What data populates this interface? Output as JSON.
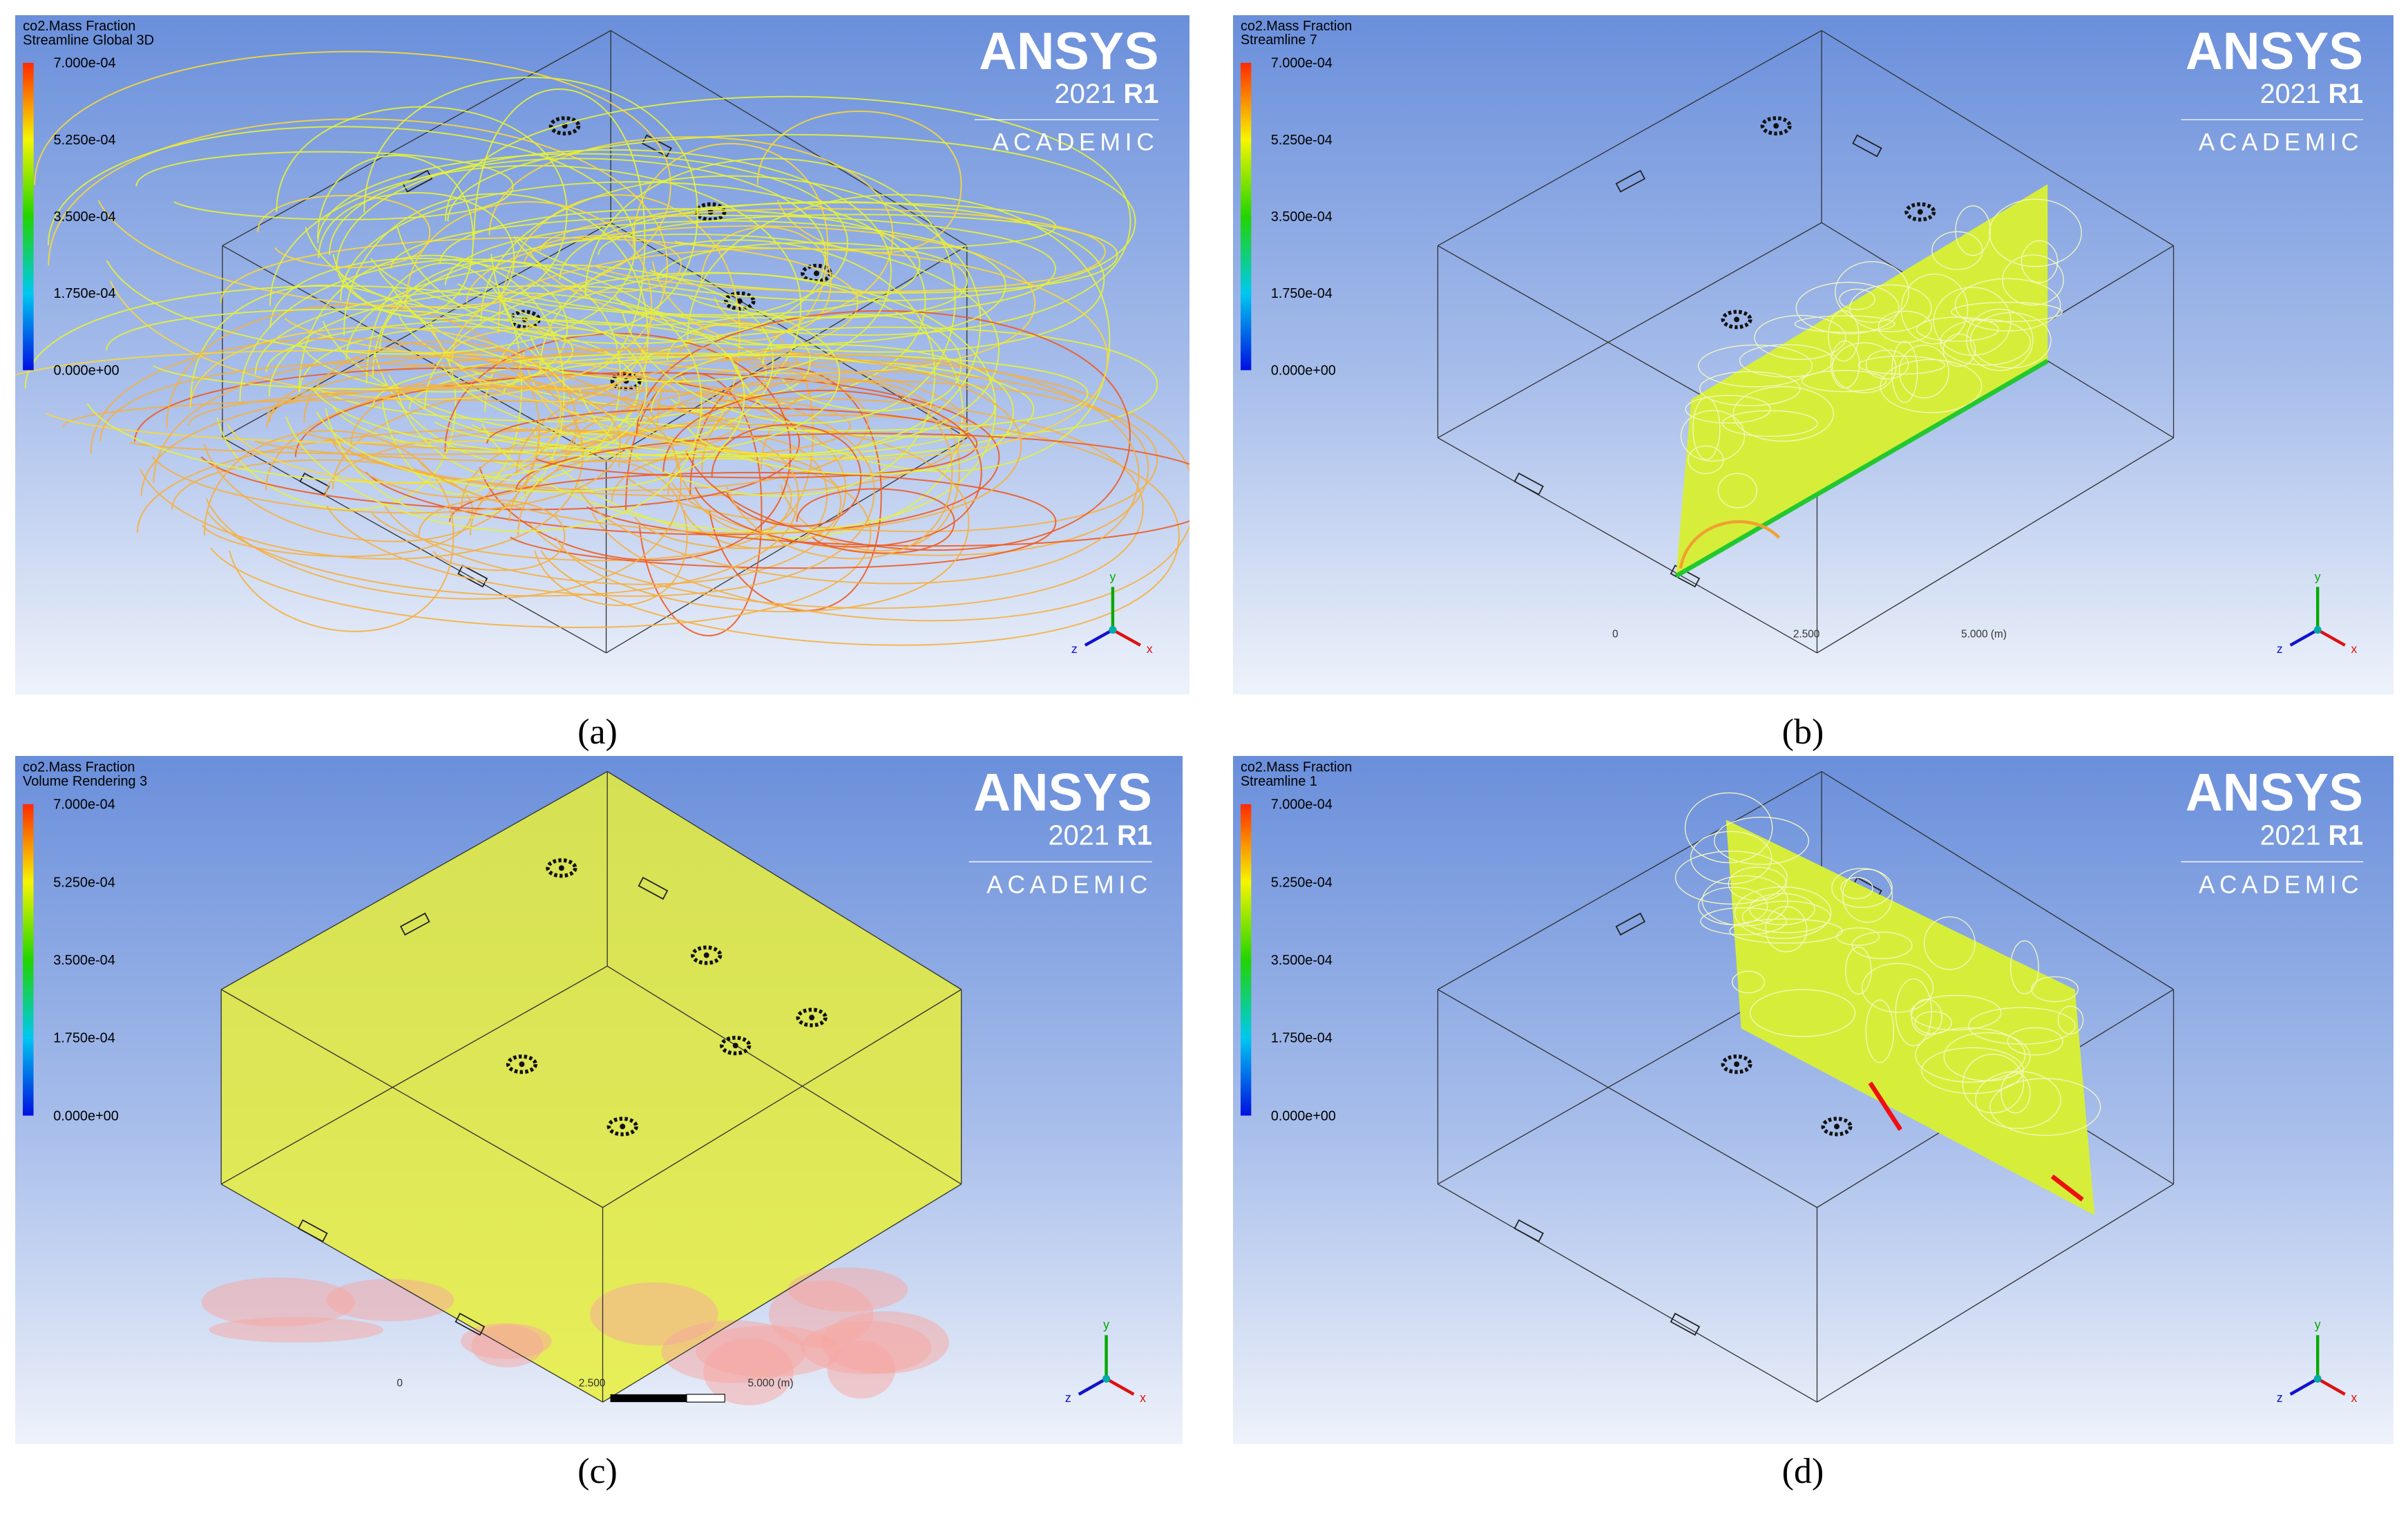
{
  "panels": [
    {
      "caption": "(a)",
      "legend": {
        "title": "co2.Mass Fraction",
        "subtitle": "Streamline Global 3D",
        "ticks": [
          "7.000e-04",
          "5.250e-04",
          "3.500e-04",
          "1.750e-04",
          "0.000e+00"
        ]
      },
      "logo": {
        "name": "ANSYS",
        "version": "2021",
        "release": "R1",
        "edition": "ACADEMIC"
      },
      "axes": [
        "y",
        "z",
        "x"
      ]
    },
    {
      "caption": "(b)",
      "legend": {
        "title": "co2.Mass Fraction",
        "subtitle": "Streamline 7",
        "ticks": [
          "7.000e-04",
          "5.250e-04",
          "3.500e-04",
          "1.750e-04",
          "0.000e+00"
        ]
      },
      "logo": {
        "name": "ANSYS",
        "version": "2021",
        "release": "R1",
        "edition": "ACADEMIC"
      },
      "axes": [
        "y",
        "z",
        "x"
      ],
      "scale": [
        "0",
        "2.500",
        "5.000 (m)"
      ]
    },
    {
      "caption": "(c)",
      "legend": {
        "title": "co2.Mass Fraction",
        "subtitle": "Volume Rendering 3",
        "ticks": [
          "7.000e-04",
          "5.250e-04",
          "3.500e-04",
          "1.750e-04",
          "0.000e+00"
        ]
      },
      "logo": {
        "name": "ANSYS",
        "version": "2021",
        "release": "R1",
        "edition": "ACADEMIC"
      },
      "axes": [
        "y",
        "z",
        "x"
      ],
      "scale": [
        "0",
        "2.500",
        "5.000 (m)"
      ]
    },
    {
      "caption": "(d)",
      "legend": {
        "title": "co2.Mass Fraction",
        "subtitle": "Streamline 1",
        "ticks": [
          "7.000e-04",
          "5.250e-04",
          "3.500e-04",
          "1.750e-04",
          "0.000e+00"
        ]
      },
      "logo": {
        "name": "ANSYS",
        "version": "2021",
        "release": "R1",
        "edition": "ACADEMIC"
      },
      "axes": [
        "y",
        "z",
        "x"
      ]
    }
  ]
}
